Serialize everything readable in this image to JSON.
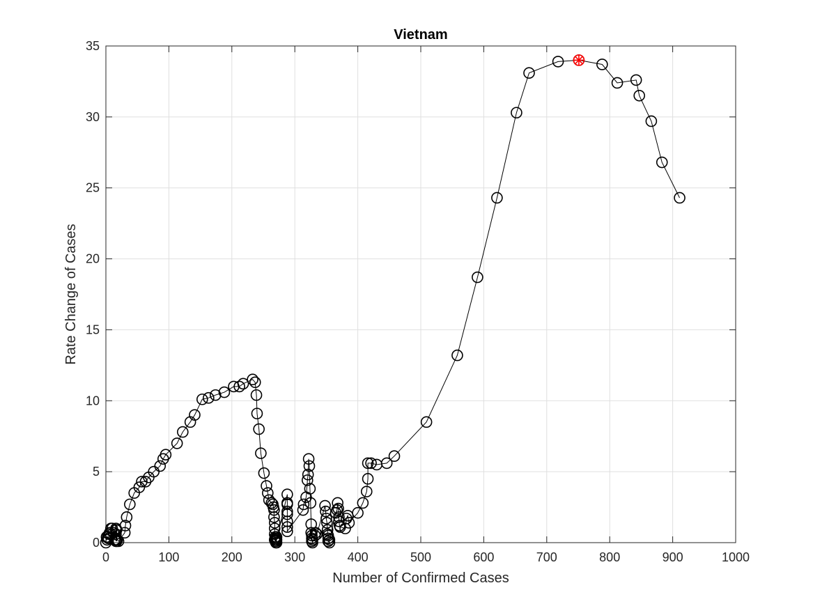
{
  "chart_data": {
    "type": "line",
    "title": "Vietnam",
    "xlabel": "Number of Confirmed Cases",
    "ylabel": "Rate Change of Cases",
    "xlim": [
      0,
      1000
    ],
    "ylim": [
      0,
      35
    ],
    "xticks": [
      0,
      100,
      200,
      300,
      400,
      500,
      600,
      700,
      800,
      900,
      1000
    ],
    "yticks": [
      0,
      5,
      10,
      15,
      20,
      25,
      30,
      35
    ],
    "grid": true,
    "marker": "circle",
    "colors": {
      "series": "#000000",
      "highlight": "#ff0000",
      "grid": "#dfdfdf",
      "axis": "#262626"
    },
    "series": [
      {
        "x": [
          0,
          1,
          2,
          3,
          4,
          5,
          6,
          8,
          10,
          12,
          14,
          16,
          16,
          16,
          16,
          16,
          17,
          17,
          18,
          20,
          30,
          31,
          33,
          38,
          45,
          53,
          57,
          63,
          68,
          76,
          86,
          91,
          95,
          113,
          122,
          134,
          141,
          153,
          163,
          174,
          188,
          203,
          212,
          218,
          233,
          237,
          239,
          240,
          243,
          246,
          251,
          255,
          257,
          259,
          263,
          265,
          266,
          267,
          267,
          268,
          268,
          268,
          268,
          269,
          269,
          270,
          270,
          270,
          270,
          271,
          271,
          271,
          288,
          288,
          288,
          288,
          288,
          288,
          288,
          288,
          313,
          314,
          318,
          320,
          321,
          322,
          323,
          324,
          325,
          326,
          326,
          327,
          327,
          327,
          328,
          328,
          332,
          333,
          335,
          348,
          349,
          350,
          351,
          352,
          352,
          353,
          353,
          353,
          355,
          355,
          365,
          367,
          368,
          369,
          370,
          370,
          371,
          372,
          380,
          382,
          384,
          386,
          400,
          408,
          414,
          416,
          416,
          421,
          430,
          446,
          458,
          509,
          558,
          590,
          621,
          652,
          672,
          718,
          751,
          788,
          812,
          842,
          847,
          866,
          883,
          911
        ],
        "y": [
          0,
          0.4,
          0.2,
          0.4,
          0.3,
          0.6,
          0.7,
          1,
          1,
          0.7,
          0.2,
          0.2,
          0.6,
          0.9,
          0.1,
          1,
          0.1,
          0.9,
          0.2,
          0.1,
          0.7,
          1.2,
          1.8,
          2.7,
          3.5,
          3.9,
          4.3,
          4.3,
          4.6,
          5,
          5.4,
          5.9,
          6.2,
          7,
          7.8,
          8.5,
          9,
          10.1,
          10.2,
          10.4,
          10.6,
          11,
          11,
          11.2,
          11.5,
          11.3,
          10.4,
          9.1,
          8,
          6.3,
          4.9,
          4,
          3.5,
          3,
          2.8,
          2.7,
          2.5,
          2.3,
          1.8,
          1.4,
          1,
          0.6,
          0.2,
          0.1,
          0.4,
          0,
          0.2,
          0.3,
          0.1,
          0.4,
          0,
          0.2,
          3.4,
          2.8,
          2.7,
          2.2,
          2,
          1.5,
          1.1,
          0.8,
          2.3,
          2.7,
          3.2,
          4.4,
          4.8,
          5.9,
          5.4,
          3.8,
          2.8,
          1.3,
          0.7,
          0.5,
          0.3,
          0.1,
          0.2,
          0,
          0.5,
          0.7,
          0.6,
          2.6,
          2.2,
          1.7,
          1.4,
          0.9,
          0.6,
          0.5,
          0.3,
          0.1,
          0,
          0.2,
          2.1,
          2.3,
          2.8,
          2.4,
          1.8,
          1.5,
          1.2,
          1.1,
          1,
          1.7,
          1.9,
          1.4,
          2.1,
          2.8,
          3.6,
          4.5,
          5.6,
          5.6,
          5.5,
          5.6,
          6.1,
          8.5,
          13.2,
          18.7,
          24.3,
          30.3,
          33.1,
          33.9,
          34,
          33.7,
          32.4,
          32.6,
          31.5,
          29.7,
          26.8,
          24.3
        ]
      }
    ],
    "highlight_point": {
      "x": 751,
      "y": 34,
      "marker": "circle-star"
    }
  }
}
